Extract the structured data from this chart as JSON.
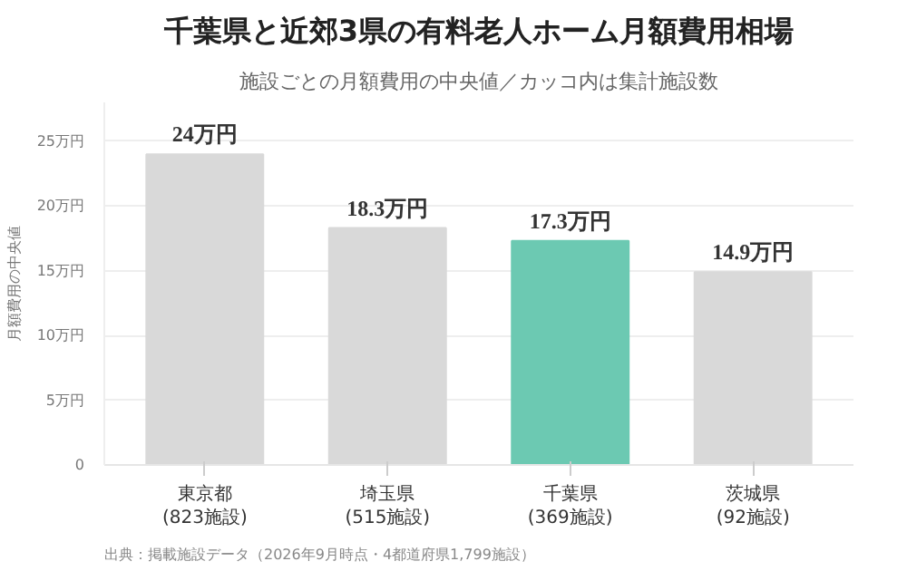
{
  "chart_data": {
    "type": "bar",
    "title": "千葉県と近郊3県の有料老人ホーム月額費用相場",
    "subtitle": "施設ごとの月額費用の中央値／カッコ内は集計施設数",
    "ylabel": "月額費用の中央値",
    "categories": [
      "東京都\n(823施設)",
      "埼玉県\n(515施設)",
      "千葉県\n(369施設)",
      "茨城県\n(92施設)"
    ],
    "values": [
      24,
      18.3,
      17.3,
      14.9
    ],
    "colors": [
      "#d9d9d9",
      "#d9d9d9",
      "#6cc9b2",
      "#d9d9d9"
    ],
    "value_labels": [
      "24万円",
      "18.3万円",
      "17.3万円",
      "14.9万円"
    ],
    "ylim": [
      0,
      28
    ],
    "yticks": [
      {
        "value": 0,
        "label": "0"
      },
      {
        "value": 5,
        "label": "5万円"
      },
      {
        "value": 10,
        "label": "10万円"
      },
      {
        "value": 15,
        "label": "15万円"
      },
      {
        "value": 20,
        "label": "20万円"
      },
      {
        "value": 25,
        "label": "25万円"
      }
    ],
    "grid": "y",
    "annotations": [
      "出典：掲載施設データ（2026年9月時点・4都道府県1,799施設）"
    ]
  }
}
